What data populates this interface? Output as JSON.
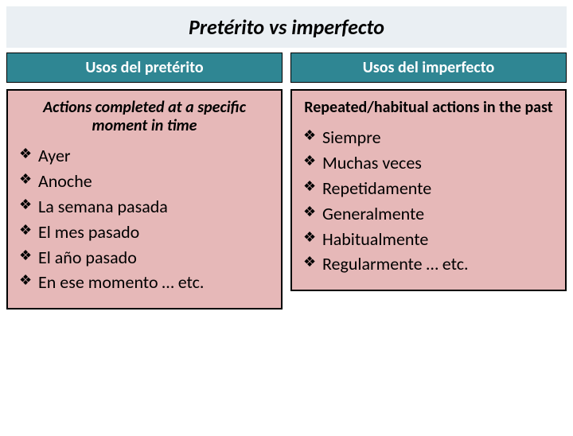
{
  "title": "Pretérito vs imperfecto",
  "left": {
    "header": "Usos del pretérito",
    "subhead": "Actions completed at a specific moment in time",
    "items": [
      "Ayer",
      "Anoche",
      "La semana pasada",
      "El mes pasado",
      "El año pasado",
      "En ese momento … etc."
    ]
  },
  "right": {
    "header": "Usos del imperfecto",
    "subhead": "Repeated/habitual actions in the past",
    "items": [
      "Siempre",
      "Muchas veces",
      "Repetidamente",
      "Generalmente",
      "Habitualmente",
      "Regularmente … etc."
    ]
  },
  "colors": {
    "title_bg": "#eaeff3",
    "header_bg": "#2f8693",
    "header_fg": "#ffffff",
    "body_bg": "#e6b8b8",
    "border": "#000000",
    "text": "#000000"
  }
}
